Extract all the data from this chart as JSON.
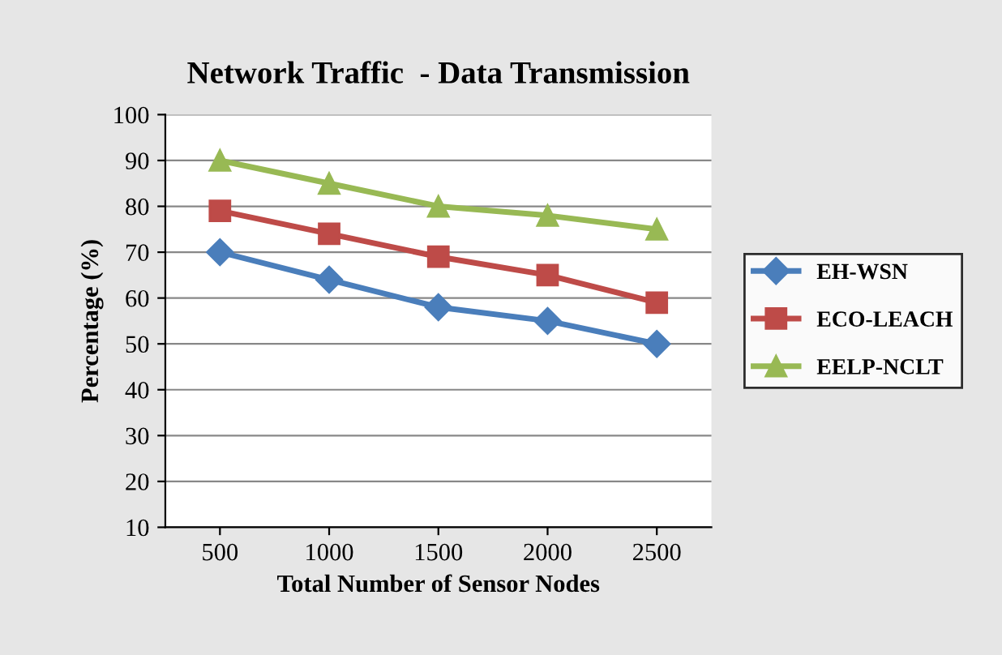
{
  "chart_data": {
    "type": "line",
    "title": "Network Traffic  - Data Transmission",
    "xlabel": "Total Number of Sensor Nodes",
    "ylabel": "Percentage (%)",
    "categories": [
      "500",
      "1000",
      "1500",
      "2000",
      "2500"
    ],
    "series": [
      {
        "name": "EH-WSN",
        "color": "#4a7ebb",
        "marker": "diamond",
        "values": [
          70,
          64,
          58,
          55,
          50
        ]
      },
      {
        "name": "ECO-LEACH",
        "color": "#be4b48",
        "marker": "square",
        "values": [
          79,
          74,
          69,
          65,
          59
        ]
      },
      {
        "name": "EELP-NCLT",
        "color": "#98b954",
        "marker": "triangle",
        "values": [
          90,
          85,
          80,
          78,
          75
        ]
      }
    ],
    "ylim": [
      10,
      100
    ],
    "yticks": [
      10,
      20,
      30,
      40,
      50,
      60,
      70,
      80,
      90,
      100
    ],
    "grid": "y",
    "legend": "right"
  }
}
